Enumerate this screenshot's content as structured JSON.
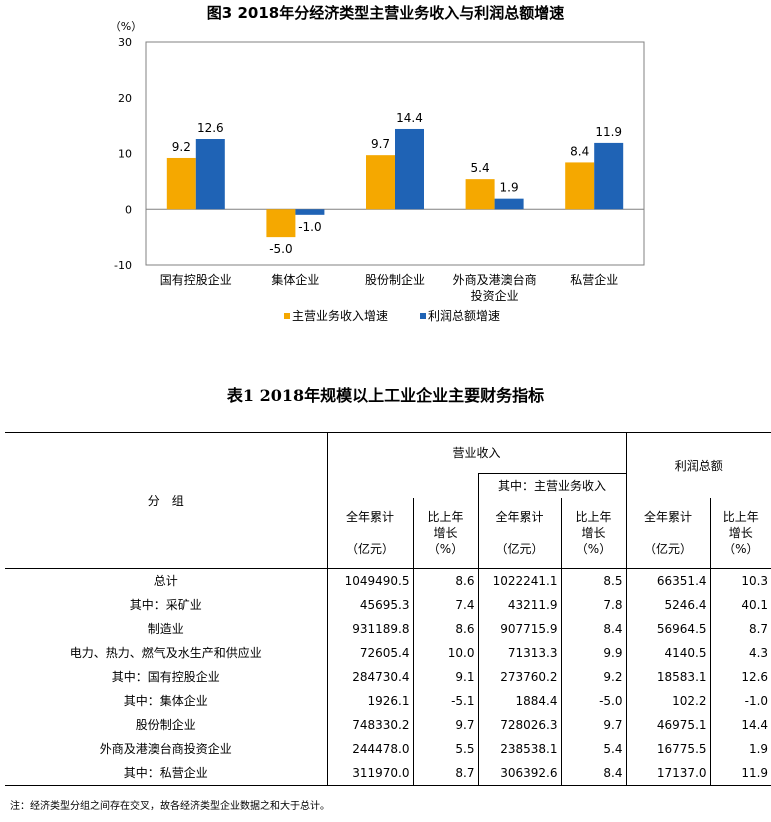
{
  "chart": {
    "title": "图3 2018年分经济类型主营业务收入与利润总额增速",
    "unit_label": "（%）",
    "legend": [
      "主营业务收入增速",
      "利润总额增速"
    ]
  },
  "chart_data": {
    "type": "bar",
    "title": "图3 2018年分经济类型主营业务收入与利润总额增速",
    "ylabel": "（%）",
    "ylim": [
      -10,
      30
    ],
    "yticks": [
      "-10",
      "0",
      "10",
      "20",
      "30"
    ],
    "categories": [
      "国有控股企业",
      "集体企业",
      "股份制企业",
      "外商及港澳台商投资企业",
      "私营企业"
    ],
    "category_lines": [
      [
        "国有控股企业"
      ],
      [
        "集体企业"
      ],
      [
        "股份制企业"
      ],
      [
        "外商及港澳台商",
        "投资企业"
      ],
      [
        "私营企业"
      ]
    ],
    "series": [
      {
        "name": "主营业务收入增速",
        "values": [
          9.2,
          -5.0,
          9.7,
          5.4,
          8.4
        ],
        "labels": [
          "9.2",
          "-5.0",
          "9.7",
          "5.4",
          "8.4"
        ],
        "color": "#F5A800"
      },
      {
        "name": "利润总额增速",
        "values": [
          12.6,
          -1.0,
          14.4,
          1.9,
          11.9
        ],
        "labels": [
          "12.6",
          "-1.0",
          "14.4",
          "1.9",
          "11.9"
        ],
        "color": "#1F63B5"
      }
    ],
    "legend_position": "bottom",
    "grid": false
  },
  "table": {
    "title": "表1 2018年规模以上工业企业主要财务指标",
    "headers": {
      "group": "分　组",
      "revenue": "营业收入",
      "main_business": "其中：主营业务收入",
      "profit": "利润总额",
      "cumulative": [
        "全年累计",
        "（亿元）"
      ],
      "growth": [
        "比上年",
        "增长",
        "（%）"
      ]
    },
    "rows": [
      {
        "name": "总计",
        "rev": "1049490.5",
        "rev_g": "8.6",
        "main": "1022241.1",
        "main_g": "8.5",
        "profit": "66351.4",
        "profit_g": "10.3"
      },
      {
        "name": "其中：采矿业",
        "rev": "45695.3",
        "rev_g": "7.4",
        "main": "43211.9",
        "main_g": "7.8",
        "profit": "5246.4",
        "profit_g": "40.1"
      },
      {
        "name": "制造业",
        "rev": "931189.8",
        "rev_g": "8.6",
        "main": "907715.9",
        "main_g": "8.4",
        "profit": "56964.5",
        "profit_g": "8.7"
      },
      {
        "name": "电力、热力、燃气及水生产和供应业",
        "rev": "72605.4",
        "rev_g": "10.0",
        "main": "71313.3",
        "main_g": "9.9",
        "profit": "4140.5",
        "profit_g": "4.3"
      },
      {
        "name": "其中：国有控股企业",
        "rev": "284730.4",
        "rev_g": "9.1",
        "main": "273760.2",
        "main_g": "9.2",
        "profit": "18583.1",
        "profit_g": "12.6"
      },
      {
        "name": "其中：集体企业",
        "rev": "1926.1",
        "rev_g": "-5.1",
        "main": "1884.4",
        "main_g": "-5.0",
        "profit": "102.2",
        "profit_g": "-1.0"
      },
      {
        "name": "股份制企业",
        "rev": "748330.2",
        "rev_g": "9.7",
        "main": "728026.3",
        "main_g": "9.7",
        "profit": "46975.1",
        "profit_g": "14.4"
      },
      {
        "name": "外商及港澳台商投资企业",
        "rev": "244478.0",
        "rev_g": "5.5",
        "main": "238538.1",
        "main_g": "5.4",
        "profit": "16775.5",
        "profit_g": "1.9"
      },
      {
        "name": "其中：私营企业",
        "rev": "311970.0",
        "rev_g": "8.7",
        "main": "306392.6",
        "main_g": "8.4",
        "profit": "17137.0",
        "profit_g": "11.9"
      }
    ],
    "footnote": "注：经济类型分组之间存在交叉，故各经济类型企业数据之和大于总计。"
  }
}
